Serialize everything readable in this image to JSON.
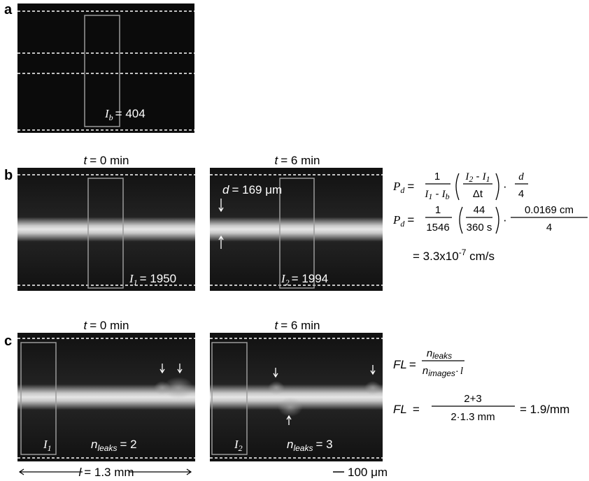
{
  "panel_a": {
    "label": "a",
    "measure": {
      "symbol": "I",
      "subscript": "b",
      "value": "= 404"
    }
  },
  "panel_b": {
    "label": "b",
    "left": {
      "time": {
        "symbol": "t",
        "value": "= 0 min"
      },
      "measure": {
        "symbol": "I",
        "subscript": "1",
        "value": "= 1950"
      }
    },
    "right": {
      "time": {
        "symbol": "t",
        "value": "= 6 min"
      },
      "diameter": {
        "symbol": "d",
        "value": "= 169 μm"
      },
      "measure": {
        "symbol": "I",
        "subscript": "2",
        "value": "= 1994"
      }
    },
    "equations": [
      {
        "lhs": "P",
        "lhs_sub": "d",
        "eq": "=",
        "f1_num": "1",
        "f1_den": [
          "I",
          "1",
          " - ",
          "I",
          "b"
        ],
        "f2_num": [
          "I",
          "2",
          " - ",
          "I",
          "1"
        ],
        "f2_den": "Δt",
        "dot": "·",
        "f3_num": "d",
        "f3_den": "4"
      },
      {
        "lhs": "P",
        "lhs_sub": "d",
        "eq": "=",
        "f1_num": "1",
        "f1_den": "1546",
        "f2_num": "44",
        "f2_den": "360 s",
        "dot": "·",
        "f3_num": "0.0169 cm",
        "f3_den": "4"
      },
      {
        "result": [
          "= 3.3x10",
          "-7",
          " cm/s"
        ]
      }
    ]
  },
  "panel_c": {
    "label": "c",
    "left": {
      "time": {
        "symbol": "t",
        "value": "= 0 min"
      },
      "measure": {
        "symbol": "I",
        "subscript": "1"
      },
      "leaks": {
        "symbol": "n",
        "subscript": "leaks",
        "value": "= 2"
      }
    },
    "right": {
      "time": {
        "symbol": "t",
        "value": "= 6 min"
      },
      "measure": {
        "symbol": "I",
        "subscript": "2"
      },
      "leaks": {
        "symbol": "n",
        "subscript": "leaks",
        "value": "= 3"
      }
    },
    "length": {
      "symbol": "l",
      "value": "= 1.3 mm"
    },
    "scale_bar": "100 μm",
    "equations": [
      {
        "lhs": "FL",
        "eq": "=",
        "num": [
          "n",
          "leaks"
        ],
        "den": [
          "n",
          "images",
          "·",
          "l"
        ]
      },
      {
        "lhs": "FL",
        "eq": "=",
        "num": "2+3",
        "den": "2·1.3 mm",
        "rhs": "= 1.9/mm"
      }
    ]
  }
}
